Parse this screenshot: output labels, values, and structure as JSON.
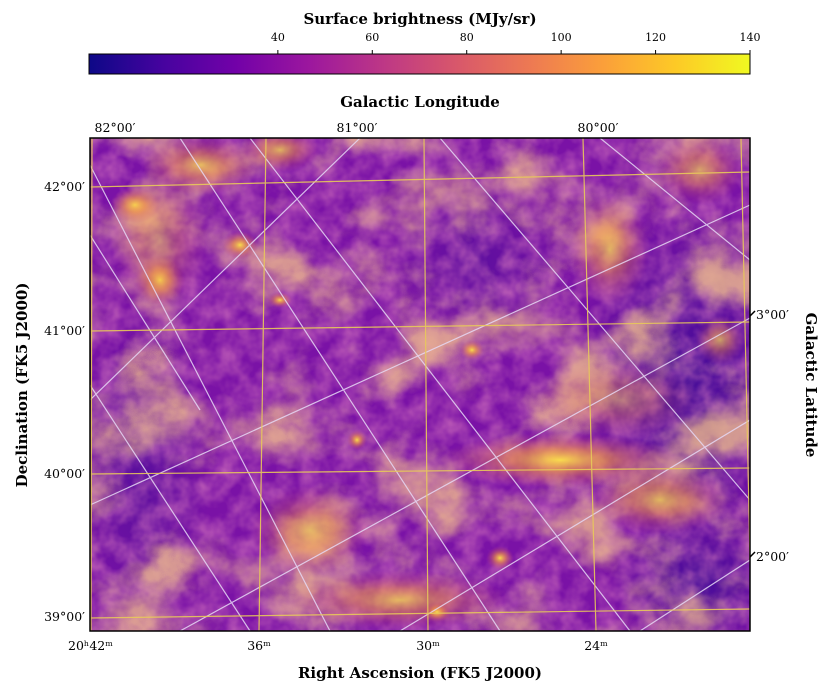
{
  "chart_data": {
    "type": "heatmap",
    "colorbar": {
      "label": "Surface brightness (MJy/sr)",
      "ticks": [
        "40",
        "60",
        "80",
        "100",
        "120",
        "140"
      ],
      "tick_values": [
        40,
        60,
        80,
        100,
        120,
        140
      ],
      "range": [
        0,
        140
      ],
      "colormap": "plasma",
      "colors": [
        "#0d0887",
        "#46039f",
        "#7201a8",
        "#9c179e",
        "#bd3786",
        "#d8576b",
        "#ed7953",
        "#fb9f3a",
        "#fdca26",
        "#f0f921"
      ]
    },
    "xlabel": "Right Ascension (FK5 J2000)",
    "ylabel": "Declination (FK5 J2000)",
    "top_label": "Galactic Longitude",
    "right_label": "Galactic Latitude",
    "ra_ticks": [
      {
        "label": "20ʰ42ᵐ",
        "value_min": 42
      },
      {
        "label": "36ᵐ",
        "value_min": 36
      },
      {
        "label": "30ᵐ",
        "value_min": 30
      },
      {
        "label": "24ᵐ",
        "value_min": 24
      }
    ],
    "dec_ticks": [
      {
        "label": "42°00′",
        "value": 42
      },
      {
        "label": "41°00′",
        "value": 41
      },
      {
        "label": "40°00′",
        "value": 40
      },
      {
        "label": "39°00′",
        "value": 39
      }
    ],
    "glon_ticks": [
      {
        "label": "82°00′",
        "value": 82
      },
      {
        "label": "81°00′",
        "value": 81
      },
      {
        "label": "80°00′",
        "value": 80
      }
    ],
    "glat_ticks": [
      {
        "label": "3°00′",
        "value": 3
      },
      {
        "label": "2°00′",
        "value": 2
      }
    ],
    "grid": true,
    "grid_colors": {
      "equatorial": "#e8c95a",
      "galactic": "#e6d9f5"
    }
  }
}
